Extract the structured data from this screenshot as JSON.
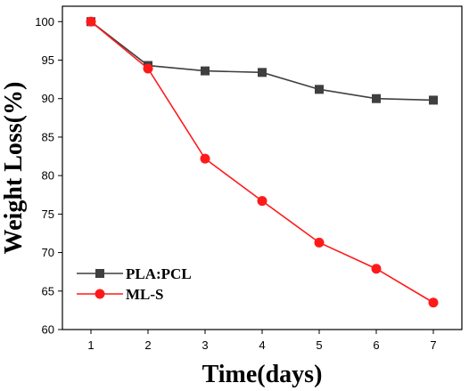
{
  "chart_data": {
    "type": "line",
    "title": "",
    "xlabel": "Time(days)",
    "ylabel": "Weight Loss(%)",
    "x": [
      1,
      2,
      3,
      4,
      5,
      6,
      7
    ],
    "xticks": [
      "1",
      "2",
      "3",
      "4",
      "5",
      "6",
      "7"
    ],
    "yticks": [
      "60",
      "65",
      "70",
      "75",
      "80",
      "85",
      "90",
      "95",
      "100"
    ],
    "xlim": [
      0.5,
      7.5
    ],
    "ylim": [
      60,
      102
    ],
    "grid": false,
    "legend_position": "bottom-left",
    "series": [
      {
        "name": "PLA:PCL",
        "marker": "square",
        "color": "#3f3f3f",
        "values": [
          100,
          94.3,
          93.6,
          93.4,
          91.2,
          90.0,
          89.8
        ]
      },
      {
        "name": "ML-S",
        "marker": "circle",
        "color": "#ff1a1a",
        "values": [
          100,
          93.9,
          82.2,
          76.7,
          71.3,
          67.9,
          63.5
        ]
      }
    ]
  }
}
